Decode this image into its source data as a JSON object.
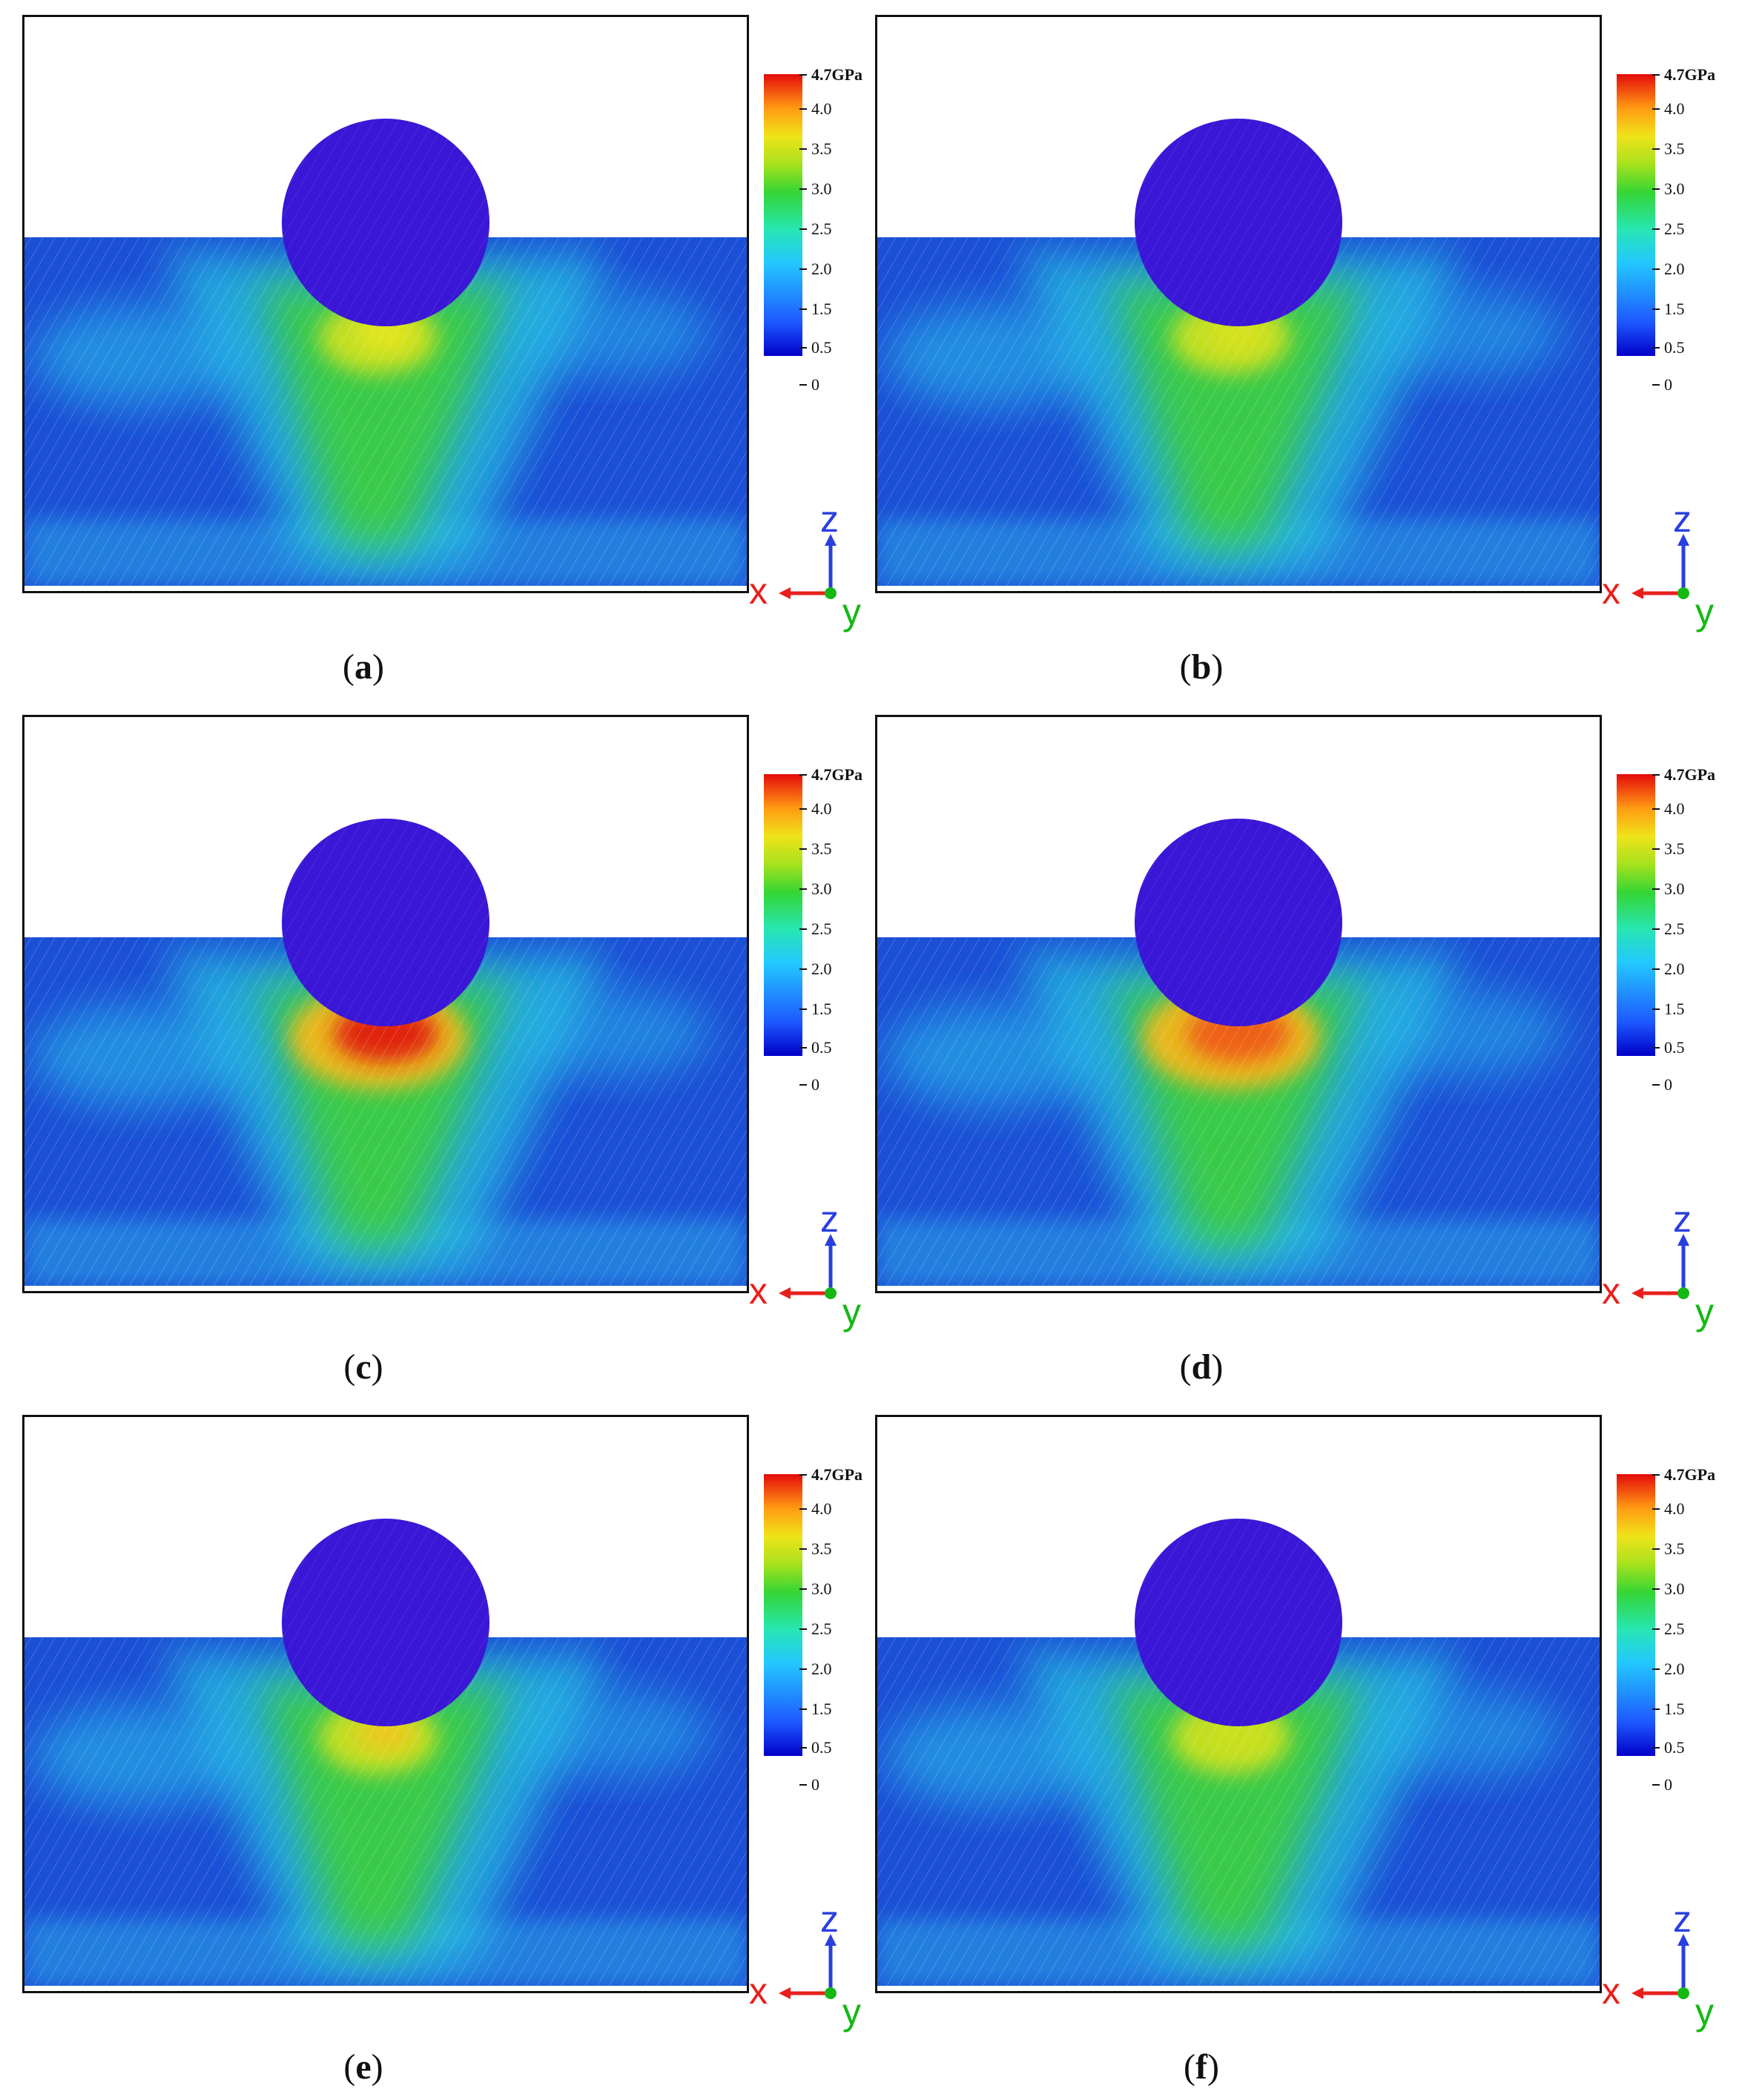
{
  "colorbar": {
    "ticks": [
      "4.7GPa",
      "4.0",
      "3.5",
      "3.0",
      "2.5",
      "2.0",
      "1.5",
      "0.5",
      "0"
    ],
    "colors": [
      "#0000c8",
      "#1e58ff",
      "#23c8ff",
      "#27e6b2",
      "#34d534",
      "#a6e21d",
      "#f0e319",
      "#ff9a13",
      "#e40b0b"
    ]
  },
  "axes": {
    "x": "x",
    "y": "y",
    "z": "z",
    "x_color": "#e8201c",
    "y_color": "#14b814",
    "z_color": "#2a3ee0"
  },
  "panels": [
    {
      "label": "a",
      "stress": "medium",
      "peak_color": "#e6e61a"
    },
    {
      "label": "b",
      "stress": "medium",
      "peak_color": "#d8e21b"
    },
    {
      "label": "c",
      "stress": "high",
      "peak_color": "#e01a0a"
    },
    {
      "label": "d",
      "stress": "high",
      "peak_color": "#ef5b12"
    },
    {
      "label": "e",
      "stress": "medium",
      "peak_color": "#f0c81a"
    },
    {
      "label": "f",
      "stress": "medium",
      "peak_color": "#cbe01b"
    }
  ],
  "captions": [
    "(a)",
    "(b)",
    "(c)",
    "(d)",
    "(e)",
    "(f)"
  ]
}
